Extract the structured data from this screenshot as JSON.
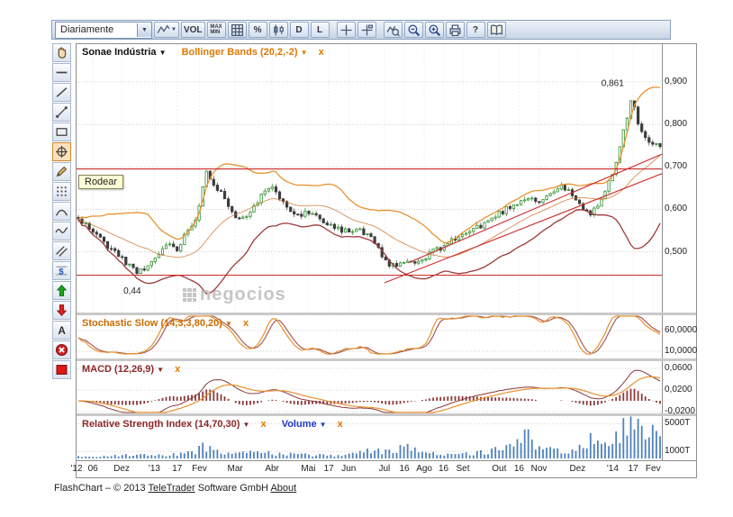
{
  "toolbar": {
    "period": {
      "value": "Diariamente",
      "caret": "▼"
    },
    "buttons": [
      {
        "name": "chart-type-select",
        "icon": "line-chart",
        "caret": true
      },
      {
        "name": "volume-toggle",
        "label": "VOL"
      },
      {
        "name": "max-min-toggle",
        "label": "MAX MIN",
        "two_line": true
      },
      {
        "name": "grid-toggle",
        "icon": "grid"
      },
      {
        "name": "percent-scale-button",
        "label": "%"
      },
      {
        "name": "bar-style-button",
        "icon": "candles"
      },
      {
        "name": "draw-d-button",
        "label": "D"
      },
      {
        "name": "draw-l-button",
        "label": "L"
      },
      {
        "name": "crosshair-button",
        "icon": "crosshair",
        "gap": true
      },
      {
        "name": "crosshair-track-button",
        "icon": "crosshair-lines"
      },
      {
        "name": "zoom-mode-button",
        "icon": "chart-magnifier",
        "gap": true
      },
      {
        "name": "zoom-out-button",
        "icon": "magnifier-minus"
      },
      {
        "name": "zoom-in-button",
        "icon": "magnifier-plus"
      },
      {
        "name": "print-button",
        "icon": "printer"
      },
      {
        "name": "help-button",
        "label": "?"
      },
      {
        "name": "manual-button",
        "icon": "book"
      }
    ]
  },
  "left_tools": [
    {
      "name": "pan-tool",
      "icon": "hand"
    },
    {
      "name": "horizontal-line-tool",
      "icon": "h-line"
    },
    {
      "name": "trend-line-tool",
      "icon": "diag-line"
    },
    {
      "name": "ray-line-tool",
      "icon": "ray-line"
    },
    {
      "name": "rectangle-tool",
      "icon": "rect"
    },
    {
      "name": "encircle-tool",
      "icon": "circle-cross",
      "active": true
    },
    {
      "name": "pencil-tool",
      "icon": "pencil"
    },
    {
      "name": "grid-tool",
      "icon": "dots-grid"
    },
    {
      "name": "arc-tool",
      "icon": "arc"
    },
    {
      "name": "wave-tool",
      "icon": "wave"
    },
    {
      "name": "parallel-lines-tool",
      "icon": "parallel"
    },
    {
      "name": "price-lines-tool",
      "icon": "dollar-lines"
    },
    {
      "name": "arrow-up-tool",
      "icon": "arrow-up"
    },
    {
      "name": "arrow-down-tool",
      "icon": "arrow-down"
    },
    {
      "name": "text-tool",
      "icon": "letter-a"
    },
    {
      "name": "delete-tool",
      "icon": "delete-x"
    },
    {
      "name": "color-tool",
      "icon": "red-square"
    }
  ],
  "tooltip": {
    "text": "Rodear"
  },
  "main_chart": {
    "symbol": "Sonae Indústria",
    "symbol_caret": "▼",
    "overlay_label": "Bollinger Bands (20,2,-2)",
    "overlay_caret": "▼",
    "overlay_close": "x",
    "watermark": "negocios",
    "high_annotation": "0,861",
    "low_annotation": "0,44",
    "y_ticks": [
      {
        "label": "0,900",
        "value": 0.9
      },
      {
        "label": "0,800",
        "value": 0.8
      },
      {
        "label": "0,700",
        "value": 0.7
      },
      {
        "label": "0,600",
        "value": 0.6
      },
      {
        "label": "0,500",
        "value": 0.5
      }
    ]
  },
  "panels": {
    "stochastic": {
      "title": "Stochastic Slow (14,3,3,80,20)",
      "caret": "▼",
      "close": "x",
      "ticks": [
        {
          "label": "60,0000",
          "value": 60
        },
        {
          "label": "10,0000",
          "value": 10
        }
      ]
    },
    "macd": {
      "title": "MACD (12,26,9)",
      "caret": "▼",
      "close": "x",
      "ticks": [
        {
          "label": "0,0600",
          "value": 0.06
        },
        {
          "label": "0,0200",
          "value": 0.02
        },
        {
          "label": "-0,0200",
          "value": -0.02
        }
      ]
    },
    "rsi_volume": {
      "rsi_title": "Relative Strength Index (14,70,30)",
      "rsi_caret": "▼",
      "rsi_close": "x",
      "volume_title": "Volume",
      "volume_caret": "▼",
      "volume_close": "x",
      "ticks": [
        {
          "label": "5000T",
          "value": 5000
        },
        {
          "label": "1000T",
          "value": 1000
        }
      ]
    }
  },
  "x_axis": {
    "labels": [
      {
        "text": "'12",
        "f": 0.0
      },
      {
        "text": "06",
        "f": 0.028
      },
      {
        "text": "Dez",
        "f": 0.077
      },
      {
        "text": "'13",
        "f": 0.133
      },
      {
        "text": "17",
        "f": 0.172
      },
      {
        "text": "Fev",
        "f": 0.21
      },
      {
        "text": "Mar",
        "f": 0.271
      },
      {
        "text": "Abr",
        "f": 0.334
      },
      {
        "text": "Mai",
        "f": 0.396
      },
      {
        "text": "17",
        "f": 0.431
      },
      {
        "text": "Jun",
        "f": 0.465
      },
      {
        "text": "Jul",
        "f": 0.526
      },
      {
        "text": "16",
        "f": 0.56
      },
      {
        "text": "Ago",
        "f": 0.594
      },
      {
        "text": "16",
        "f": 0.627
      },
      {
        "text": "Set",
        "f": 0.66
      },
      {
        "text": "Out",
        "f": 0.722
      },
      {
        "text": "16",
        "f": 0.756
      },
      {
        "text": "Nov",
        "f": 0.79
      },
      {
        "text": "Dez",
        "f": 0.856
      },
      {
        "text": "'14",
        "f": 0.916
      },
      {
        "text": "17",
        "f": 0.951
      },
      {
        "text": "Fev",
        "f": 0.985
      }
    ]
  },
  "footer": {
    "prefix": "FlashChart – © 2013 ",
    "link_teletrader": "TeleTrader",
    "middle": " Software GmbH ",
    "link_about": "About"
  },
  "chart_data": {
    "type": "candlestick",
    "title": "Sonae Indústria",
    "timeframe": "Diariamente",
    "overlay": "Bollinger Bands (20,2,-2)",
    "indicators": {
      "bollinger": {
        "period": 20,
        "k": 2
      },
      "stochastic": [
        14,
        3,
        3,
        80,
        20
      ],
      "macd": [
        12,
        26,
        9
      ],
      "rsi": [
        14,
        70,
        30
      ]
    },
    "price_axis": {
      "min": 0.357,
      "max": 0.989
    },
    "high_value": 0.861,
    "low_value": 0.44,
    "num_points": 160,
    "seed": 11,
    "price_waypoints": [
      [
        0,
        0.575
      ],
      [
        0.02,
        0.555
      ],
      [
        0.045,
        0.52
      ],
      [
        0.07,
        0.49
      ],
      [
        0.09,
        0.465
      ],
      [
        0.105,
        0.452
      ],
      [
        0.12,
        0.462
      ],
      [
        0.14,
        0.5
      ],
      [
        0.155,
        0.52
      ],
      [
        0.17,
        0.505
      ],
      [
        0.185,
        0.545
      ],
      [
        0.2,
        0.575
      ],
      [
        0.21,
        0.625
      ],
      [
        0.22,
        0.685
      ],
      [
        0.23,
        0.668
      ],
      [
        0.245,
        0.64
      ],
      [
        0.26,
        0.605
      ],
      [
        0.275,
        0.578
      ],
      [
        0.29,
        0.59
      ],
      [
        0.305,
        0.612
      ],
      [
        0.32,
        0.64
      ],
      [
        0.335,
        0.648
      ],
      [
        0.35,
        0.625
      ],
      [
        0.365,
        0.6
      ],
      [
        0.38,
        0.588
      ],
      [
        0.4,
        0.592
      ],
      [
        0.42,
        0.576
      ],
      [
        0.44,
        0.56
      ],
      [
        0.46,
        0.548
      ],
      [
        0.48,
        0.552
      ],
      [
        0.5,
        0.535
      ],
      [
        0.515,
        0.505
      ],
      [
        0.53,
        0.475
      ],
      [
        0.545,
        0.462
      ],
      [
        0.56,
        0.478
      ],
      [
        0.575,
        0.472
      ],
      [
        0.59,
        0.478
      ],
      [
        0.605,
        0.496
      ],
      [
        0.62,
        0.508
      ],
      [
        0.64,
        0.525
      ],
      [
        0.66,
        0.54
      ],
      [
        0.68,
        0.553
      ],
      [
        0.7,
        0.568
      ],
      [
        0.72,
        0.588
      ],
      [
        0.74,
        0.605
      ],
      [
        0.76,
        0.62
      ],
      [
        0.775,
        0.632
      ],
      [
        0.79,
        0.615
      ],
      [
        0.805,
        0.63
      ],
      [
        0.82,
        0.648
      ],
      [
        0.835,
        0.652
      ],
      [
        0.85,
        0.63
      ],
      [
        0.865,
        0.605
      ],
      [
        0.88,
        0.585
      ],
      [
        0.895,
        0.618
      ],
      [
        0.91,
        0.655
      ],
      [
        0.925,
        0.71
      ],
      [
        0.94,
        0.8
      ],
      [
        0.95,
        0.861
      ],
      [
        0.958,
        0.825
      ],
      [
        0.966,
        0.79
      ],
      [
        0.975,
        0.77
      ],
      [
        0.985,
        0.755
      ],
      [
        1,
        0.745
      ]
    ],
    "volume_waypoints": [
      [
        0,
        300
      ],
      [
        0.05,
        350
      ],
      [
        0.1,
        500
      ],
      [
        0.15,
        420
      ],
      [
        0.2,
        800
      ],
      [
        0.215,
        1800
      ],
      [
        0.23,
        1100
      ],
      [
        0.27,
        600
      ],
      [
        0.3,
        900
      ],
      [
        0.34,
        700
      ],
      [
        0.4,
        500
      ],
      [
        0.45,
        420
      ],
      [
        0.5,
        1400
      ],
      [
        0.52,
        900
      ],
      [
        0.56,
        1600
      ],
      [
        0.6,
        700
      ],
      [
        0.65,
        600
      ],
      [
        0.7,
        900
      ],
      [
        0.75,
        1800
      ],
      [
        0.77,
        3200
      ],
      [
        0.79,
        1500
      ],
      [
        0.82,
        1200
      ],
      [
        0.85,
        900
      ],
      [
        0.88,
        2600
      ],
      [
        0.9,
        1500
      ],
      [
        0.92,
        2200
      ],
      [
        0.935,
        4200
      ],
      [
        0.95,
        6000
      ],
      [
        0.96,
        4600
      ],
      [
        0.97,
        3200
      ],
      [
        0.985,
        3900
      ],
      [
        1,
        2600
      ]
    ],
    "trend_lines": {
      "horizontal": [
        0.695,
        0.445
      ],
      "diagonal": [
        [
          0.526,
          0.427,
          1.0,
          0.684
        ],
        [
          0.567,
          0.474,
          1.0,
          0.73
        ]
      ]
    },
    "colors": {
      "up": "#2f8f2f",
      "down": "#3c3c3c",
      "boll_upper": "#e8912d",
      "boll_lower": "#a03838",
      "boll_mid": "#d06a20",
      "trend": "#cc2a2a",
      "stoch_k": "#e8912d",
      "stoch_d": "#a05050",
      "macd_hist": "#8b3a3a",
      "macd_signal": "#e8912d",
      "volume": "#4f81bd",
      "accent_orange": "#e07800",
      "accent_maroon": "#8b2727",
      "accent_blue": "#2038c8"
    }
  }
}
